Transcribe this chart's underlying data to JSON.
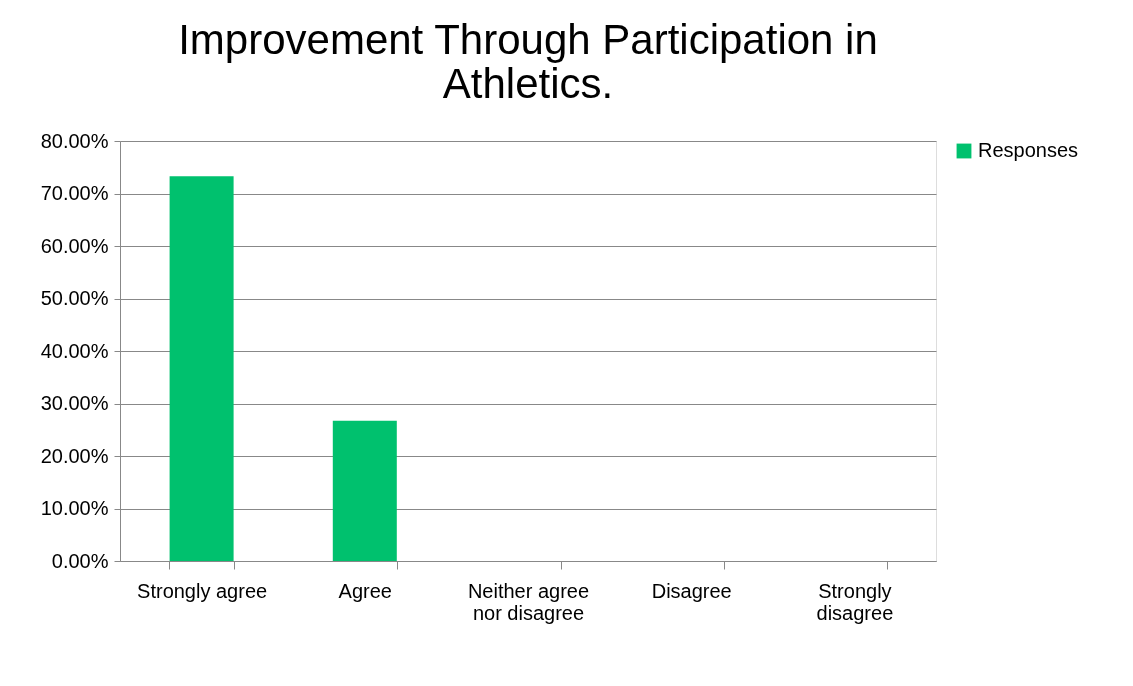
{
  "chart_data": {
    "type": "bar",
    "title": "Improvement Through Participation in Athletics.",
    "categories": [
      "Strongly agree",
      "Agree",
      "Neither agree nor disagree",
      "Disagree",
      "Strongly disagree"
    ],
    "series": [
      {
        "name": "Responses",
        "color": "#00c16e",
        "values": [
          73.3,
          26.7,
          0,
          0,
          0
        ]
      }
    ],
    "ylim": [
      0,
      80
    ],
    "yticks": [
      {
        "value": 0,
        "label": "0.00%"
      },
      {
        "value": 10,
        "label": "10.00%"
      },
      {
        "value": 20,
        "label": "20.00%"
      },
      {
        "value": 30,
        "label": "30.00%"
      },
      {
        "value": 40,
        "label": "40.00%"
      },
      {
        "value": 50,
        "label": "50.00%"
      },
      {
        "value": 60,
        "label": "60.00%"
      },
      {
        "value": 70,
        "label": "70.00%"
      },
      {
        "value": 80,
        "label": "80.00%"
      }
    ],
    "grid": "y",
    "legend": "right"
  }
}
